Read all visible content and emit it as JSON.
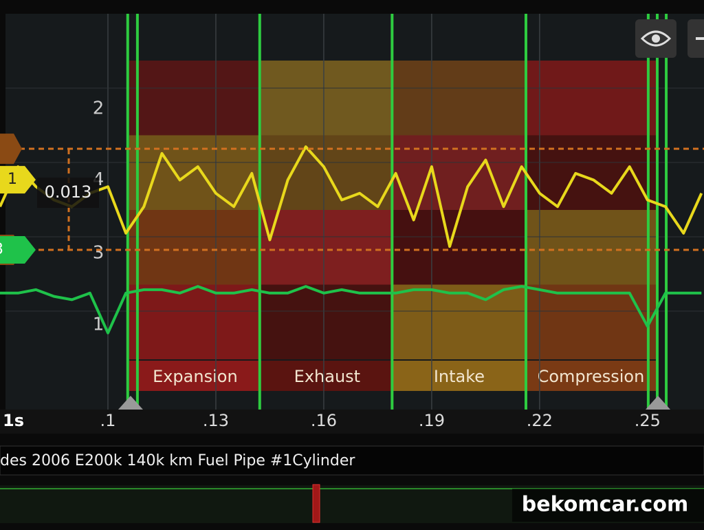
{
  "chart_data": {
    "type": "line",
    "title": "des 2006 E200k 140k km Fuel Pipe #1Cylinder",
    "watermark": "bekomcar.com",
    "x_unit_label": "1s",
    "x": [
      0.07,
      0.075,
      0.08,
      0.085,
      0.09,
      0.095,
      0.1,
      0.105,
      0.11,
      0.115,
      0.12,
      0.125,
      0.13,
      0.135,
      0.14,
      0.145,
      0.15,
      0.155,
      0.16,
      0.165,
      0.17,
      0.175,
      0.18,
      0.185,
      0.19,
      0.195,
      0.2,
      0.205,
      0.21,
      0.215,
      0.22,
      0.225,
      0.23,
      0.235,
      0.24,
      0.245,
      0.25,
      0.255,
      0.26,
      0.265
    ],
    "series": [
      {
        "name": "1",
        "color": "#e8d81c",
        "values": [
          3.0,
          3.6,
          3.3,
          3.1,
          3.0,
          3.2,
          3.3,
          2.6,
          3.0,
          3.8,
          3.4,
          3.6,
          3.2,
          3.0,
          3.5,
          2.5,
          3.4,
          3.9,
          3.6,
          3.1,
          3.2,
          3.0,
          3.5,
          2.8,
          3.6,
          2.4,
          3.3,
          3.7,
          3.0,
          3.6,
          3.2,
          3.0,
          3.5,
          3.4,
          3.2,
          3.6,
          3.1,
          3.0,
          2.6,
          3.2
        ]
      },
      {
        "name": "3",
        "color": "#1fc24a",
        "values": [
          1.7,
          1.7,
          1.75,
          1.65,
          1.6,
          1.7,
          1.1,
          1.7,
          1.75,
          1.75,
          1.7,
          1.8,
          1.7,
          1.7,
          1.75,
          1.7,
          1.7,
          1.8,
          1.7,
          1.75,
          1.7,
          1.7,
          1.7,
          1.75,
          1.75,
          1.7,
          1.7,
          1.6,
          1.75,
          1.8,
          1.75,
          1.7,
          1.7,
          1.7,
          1.7,
          1.7,
          1.2,
          1.7,
          1.7,
          1.7
        ]
      }
    ],
    "channel_labels": [
      {
        "label": "2",
        "value": 4.47
      },
      {
        "label": "4",
        "value": 3.4
      },
      {
        "label": "3",
        "value": 2.3
      },
      {
        "label": "1",
        "value": 1.22
      }
    ],
    "xlim": [
      0.07,
      0.2657
    ],
    "ylim": [
      0,
      5.9
    ],
    "xticks": [
      {
        "value": 0.1,
        "label": ".1"
      },
      {
        "value": 0.13,
        "label": ".13"
      },
      {
        "value": 0.16,
        "label": ".16"
      },
      {
        "value": 0.19,
        "label": ".19"
      },
      {
        "value": 0.22,
        "label": ".22"
      },
      {
        "value": 0.25,
        "label": ".25"
      }
    ],
    "grid": true,
    "phases": [
      {
        "name": "Expansion",
        "start": 0.1059,
        "end": 0.1426,
        "label_color": "#8a1a1a",
        "colors": [
          "#5a1616",
          "#7a5a1a",
          "#7a3a14",
          "#8a1a1a"
        ]
      },
      {
        "name": "Exhaust",
        "start": 0.1426,
        "end": 0.1793,
        "label_color": "#5a1410",
        "colors": [
          "#7a6020",
          "#6a4a18",
          "#8a2020",
          "#4a1210"
        ]
      },
      {
        "name": "Intake",
        "start": 0.1793,
        "end": 0.216,
        "label_color": "#8a6418",
        "colors": [
          "#6a4018",
          "#7a2020",
          "#4a1010",
          "#8a6418"
        ]
      },
      {
        "name": "Compression",
        "start": 0.216,
        "end": 0.2525,
        "label_color": "#7a3a14",
        "colors": [
          "#7a1a1a",
          "#4a1210",
          "#7a5a1a",
          "#7a3a14"
        ]
      }
    ],
    "cursor_levels": [
      3.87,
      2.35
    ],
    "cursor_delta": "0.013",
    "time_cursors": [
      0.1063,
      0.2529
    ],
    "markers": [
      0.1055,
      0.1082,
      0.1422,
      0.179,
      0.2162,
      0.2502,
      0.2527,
      0.2552
    ]
  }
}
